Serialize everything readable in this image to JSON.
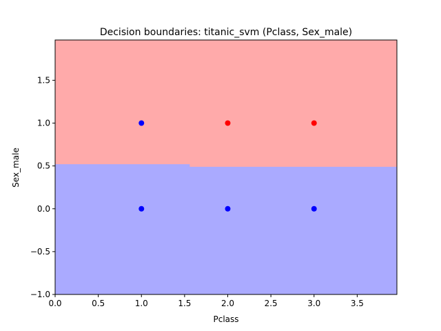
{
  "chart_data": {
    "type": "scatter",
    "title": "Decision boundaries: titanic_svm (Pclass, Sex_male)",
    "xlabel": "Pclass",
    "ylabel": "Sex_male",
    "xlim": [
      0.0,
      3.96
    ],
    "ylim": [
      -1.0,
      1.97
    ],
    "xticks": [
      "0.0",
      "0.5",
      "1.0",
      "1.5",
      "2.0",
      "2.5",
      "3.0",
      "3.5"
    ],
    "xtick_values": [
      0.0,
      0.5,
      1.0,
      1.5,
      2.0,
      2.5,
      3.0,
      3.5
    ],
    "yticks": [
      "−1.0",
      "−0.5",
      "0.0",
      "0.5",
      "1.0",
      "1.5"
    ],
    "ytick_values": [
      -1.0,
      -0.5,
      0.0,
      0.5,
      1.0,
      1.5
    ],
    "grid": false,
    "regions": [
      {
        "class": "upper",
        "color": "#ffaaaa"
      },
      {
        "class": "lower",
        "color": "#aaaaff"
      }
    ],
    "boundary": [
      {
        "x": 0.0,
        "y": 0.52
      },
      {
        "x": 1.56,
        "y": 0.52
      },
      {
        "x": 1.56,
        "y": 0.49
      },
      {
        "x": 3.96,
        "y": 0.49
      }
    ],
    "points": [
      {
        "x": 1,
        "y": 1,
        "color": "#0000ff"
      },
      {
        "x": 2,
        "y": 1,
        "color": "#ff0000"
      },
      {
        "x": 3,
        "y": 1,
        "color": "#ff0000"
      },
      {
        "x": 1,
        "y": 0,
        "color": "#0000ff"
      },
      {
        "x": 2,
        "y": 0,
        "color": "#0000ff"
      },
      {
        "x": 3,
        "y": 0,
        "color": "#0000ff"
      }
    ]
  }
}
